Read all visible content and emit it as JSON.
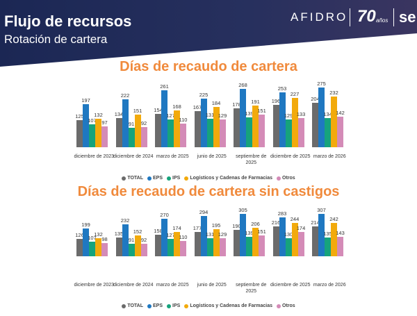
{
  "header": {
    "title": "Flujo de recursos",
    "subtitle": "Rotación de cartera",
    "logo": "AFIDRO",
    "badge": "70",
    "badge_sub": "años",
    "extra": "se"
  },
  "chart_data": [
    {
      "type": "bar",
      "title": "Días de recaudo de cartera",
      "categories": [
        "diciembre de 2023",
        "diciembre de 2024",
        "marzo de 2025",
        "junio de 2025",
        "septiembre de 2025",
        "diciembre de 2025",
        "marzo de 2026"
      ],
      "series": [
        {
          "name": "TOTAL",
          "color": "#6b6b6b",
          "values": [
            125,
            134,
            154,
            167,
            178,
            196,
            204
          ]
        },
        {
          "name": "EPS",
          "color": "#1f78c1",
          "values": [
            197,
            222,
            261,
            225,
            268,
            253,
            275
          ]
        },
        {
          "name": "IPS",
          "color": "#16a37c",
          "values": [
            107,
            91,
            127,
            131,
            139,
            129,
            134
          ]
        },
        {
          "name": "Logísticos y Cadenas de Farmacias",
          "color": "#f2aa0c",
          "values": [
            132,
            151,
            168,
            184,
            191,
            227,
            232
          ]
        },
        {
          "name": "Otros",
          "color": "#d48bb7",
          "values": [
            97,
            92,
            110,
            129,
            151,
            133,
            142
          ]
        }
      ],
      "legend": "bottom"
    },
    {
      "type": "bar",
      "title": "Días de recaudo de cartera sin castigos",
      "categories": [
        "diciembre de 2023",
        "diciembre de 2024",
        "marzo de 2025",
        "junio de 2025",
        "septiembre de 2025",
        "diciembre de 2025",
        "marzo de 2026"
      ],
      "series": [
        {
          "name": "TOTAL",
          "color": "#6b6b6b",
          "values": [
            126,
            135,
            158,
            177,
            190,
            216,
            214
          ]
        },
        {
          "name": "EPS",
          "color": "#1f78c1",
          "values": [
            199,
            232,
            270,
            294,
            305,
            283,
            307
          ]
        },
        {
          "name": "IPS",
          "color": "#16a37c",
          "values": [
            107,
            91,
            127,
            131,
            139,
            130,
            135
          ]
        },
        {
          "name": "Logísticos y Cadenas de Farmacias",
          "color": "#f2aa0c",
          "values": [
            132,
            152,
            174,
            195,
            206,
            244,
            242
          ]
        },
        {
          "name": "Otros",
          "color": "#d48bb7",
          "values": [
            98,
            92,
            110,
            129,
            151,
            174,
            143
          ]
        }
      ],
      "legend": "bottom"
    }
  ]
}
